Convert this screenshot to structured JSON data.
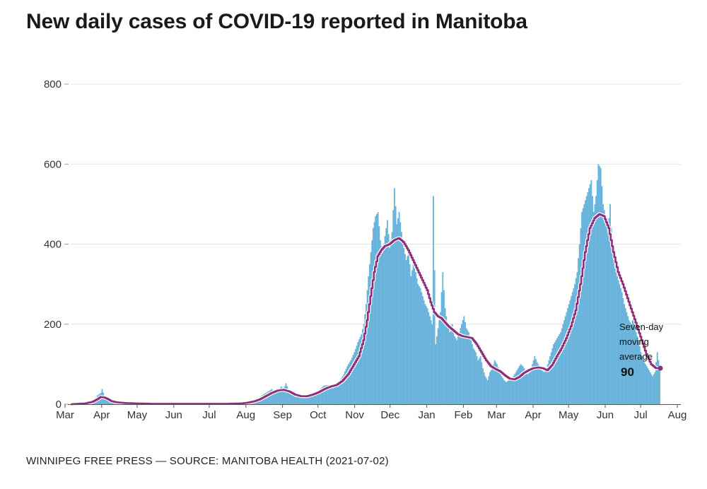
{
  "chart_data": {
    "type": "bar",
    "title": "New daily cases of COVID-19 reported in Manitoba",
    "source": "WINNIPEG FREE PRESS — SOURCE: MANITOBA HEALTH (2021-07-02)",
    "xlabel": "",
    "ylabel": "",
    "ylim": [
      0,
      800
    ],
    "y_ticks": [
      0,
      200,
      400,
      600,
      800
    ],
    "x_ticks": [
      "Mar",
      "Apr",
      "May",
      "Jun",
      "Jul",
      "Aug",
      "Sep",
      "Oct",
      "Nov",
      "Dec",
      "Jan",
      "Feb",
      "Mar",
      "Apr",
      "May",
      "Jun",
      "Jul",
      "Aug"
    ],
    "x_range_days": [
      0,
      517
    ],
    "grid": true,
    "series": [
      {
        "name": "New daily cases",
        "style": "bars",
        "color": "#6ab4dc",
        "points": [
          [
            0,
            0
          ],
          [
            10,
            1
          ],
          [
            15,
            3
          ],
          [
            18,
            8
          ],
          [
            20,
            12
          ],
          [
            22,
            22
          ],
          [
            25,
            28
          ],
          [
            26,
            38
          ],
          [
            28,
            20
          ],
          [
            30,
            14
          ],
          [
            33,
            8
          ],
          [
            36,
            4
          ],
          [
            40,
            3
          ],
          [
            45,
            2
          ],
          [
            50,
            2
          ],
          [
            60,
            1
          ],
          [
            70,
            1
          ],
          [
            80,
            0
          ],
          [
            90,
            1
          ],
          [
            100,
            0
          ],
          [
            110,
            1
          ],
          [
            120,
            1
          ],
          [
            130,
            1
          ],
          [
            140,
            2
          ],
          [
            148,
            3
          ],
          [
            150,
            6
          ],
          [
            155,
            12
          ],
          [
            158,
            10
          ],
          [
            160,
            18
          ],
          [
            163,
            25
          ],
          [
            166,
            30
          ],
          [
            170,
            38
          ],
          [
            172,
            28
          ],
          [
            175,
            35
          ],
          [
            178,
            44
          ],
          [
            180,
            38
          ],
          [
            182,
            52
          ],
          [
            185,
            30
          ],
          [
            188,
            22
          ],
          [
            190,
            18
          ],
          [
            193,
            20
          ],
          [
            196,
            18
          ],
          [
            200,
            22
          ],
          [
            204,
            24
          ],
          [
            208,
            30
          ],
          [
            211,
            38
          ],
          [
            214,
            46
          ],
          [
            218,
            48
          ],
          [
            222,
            40
          ],
          [
            225,
            52
          ],
          [
            228,
            60
          ],
          [
            231,
            75
          ],
          [
            234,
            95
          ],
          [
            237,
            110
          ],
          [
            240,
            130
          ],
          [
            243,
            155
          ],
          [
            246,
            175
          ],
          [
            248,
            200
          ],
          [
            250,
            250
          ],
          [
            252,
            320
          ],
          [
            254,
            380
          ],
          [
            256,
            440
          ],
          [
            258,
            470
          ],
          [
            260,
            480
          ],
          [
            262,
            410
          ],
          [
            264,
            380
          ],
          [
            266,
            420
          ],
          [
            268,
            460
          ],
          [
            270,
            390
          ],
          [
            272,
            430
          ],
          [
            274,
            540
          ],
          [
            276,
            450
          ],
          [
            278,
            480
          ],
          [
            280,
            430
          ],
          [
            282,
            390
          ],
          [
            284,
            360
          ],
          [
            286,
            380
          ],
          [
            288,
            320
          ],
          [
            290,
            350
          ],
          [
            292,
            330
          ],
          [
            294,
            300
          ],
          [
            296,
            290
          ],
          [
            298,
            270
          ],
          [
            300,
            250
          ],
          [
            302,
            240
          ],
          [
            304,
            220
          ],
          [
            306,
            200
          ],
          [
            307,
            520
          ],
          [
            309,
            150
          ],
          [
            311,
            190
          ],
          [
            313,
            230
          ],
          [
            315,
            330
          ],
          [
            317,
            240
          ],
          [
            319,
            200
          ],
          [
            321,
            180
          ],
          [
            323,
            200
          ],
          [
            325,
            170
          ],
          [
            327,
            160
          ],
          [
            329,
            180
          ],
          [
            331,
            200
          ],
          [
            333,
            220
          ],
          [
            335,
            190
          ],
          [
            337,
            180
          ],
          [
            339,
            160
          ],
          [
            341,
            140
          ],
          [
            343,
            130
          ],
          [
            345,
            110
          ],
          [
            347,
            120
          ],
          [
            349,
            90
          ],
          [
            351,
            70
          ],
          [
            353,
            60
          ],
          [
            355,
            80
          ],
          [
            357,
            90
          ],
          [
            359,
            110
          ],
          [
            361,
            100
          ],
          [
            363,
            85
          ],
          [
            365,
            70
          ],
          [
            367,
            60
          ],
          [
            369,
            55
          ],
          [
            371,
            60
          ],
          [
            373,
            65
          ],
          [
            375,
            70
          ],
          [
            377,
            80
          ],
          [
            379,
            90
          ],
          [
            381,
            100
          ],
          [
            383,
            95
          ],
          [
            385,
            85
          ],
          [
            387,
            75
          ],
          [
            389,
            80
          ],
          [
            391,
            100
          ],
          [
            393,
            120
          ],
          [
            395,
            105
          ],
          [
            397,
            95
          ],
          [
            399,
            85
          ],
          [
            401,
            80
          ],
          [
            403,
            90
          ],
          [
            405,
            110
          ],
          [
            407,
            130
          ],
          [
            409,
            150
          ],
          [
            411,
            160
          ],
          [
            413,
            170
          ],
          [
            415,
            180
          ],
          [
            417,
            200
          ],
          [
            419,
            220
          ],
          [
            421,
            240
          ],
          [
            423,
            260
          ],
          [
            425,
            280
          ],
          [
            427,
            300
          ],
          [
            429,
            330
          ],
          [
            431,
            400
          ],
          [
            433,
            480
          ],
          [
            435,
            500
          ],
          [
            437,
            520
          ],
          [
            439,
            540
          ],
          [
            441,
            560
          ],
          [
            443,
            480
          ],
          [
            445,
            520
          ],
          [
            447,
            600
          ],
          [
            449,
            590
          ],
          [
            451,
            500
          ],
          [
            453,
            470
          ],
          [
            455,
            430
          ],
          [
            457,
            500
          ],
          [
            459,
            380
          ],
          [
            461,
            340
          ],
          [
            463,
            320
          ],
          [
            465,
            300
          ],
          [
            467,
            280
          ],
          [
            469,
            250
          ],
          [
            471,
            230
          ],
          [
            473,
            210
          ],
          [
            475,
            200
          ],
          [
            477,
            220
          ],
          [
            479,
            180
          ],
          [
            481,
            160
          ],
          [
            483,
            130
          ],
          [
            485,
            110
          ],
          [
            487,
            100
          ],
          [
            489,
            90
          ],
          [
            491,
            80
          ],
          [
            493,
            70
          ],
          [
            495,
            80
          ],
          [
            497,
            130
          ],
          [
            499,
            90
          ]
        ]
      },
      {
        "name": "Seven-day moving average",
        "style": "step-line",
        "color": "#8e2e7a",
        "points": [
          [
            0,
            0
          ],
          [
            12,
            2
          ],
          [
            18,
            6
          ],
          [
            22,
            12
          ],
          [
            25,
            18
          ],
          [
            28,
            17
          ],
          [
            31,
            13
          ],
          [
            34,
            8
          ],
          [
            38,
            5
          ],
          [
            45,
            3
          ],
          [
            55,
            2
          ],
          [
            70,
            1
          ],
          [
            90,
            1
          ],
          [
            110,
            1
          ],
          [
            130,
            1
          ],
          [
            145,
            2
          ],
          [
            150,
            4
          ],
          [
            155,
            7
          ],
          [
            160,
            12
          ],
          [
            165,
            20
          ],
          [
            170,
            28
          ],
          [
            175,
            34
          ],
          [
            180,
            36
          ],
          [
            185,
            32
          ],
          [
            190,
            24
          ],
          [
            195,
            20
          ],
          [
            200,
            20
          ],
          [
            205,
            24
          ],
          [
            210,
            30
          ],
          [
            215,
            38
          ],
          [
            220,
            44
          ],
          [
            225,
            48
          ],
          [
            230,
            58
          ],
          [
            235,
            75
          ],
          [
            240,
            100
          ],
          [
            244,
            120
          ],
          [
            248,
            160
          ],
          [
            251,
            210
          ],
          [
            254,
            270
          ],
          [
            257,
            330
          ],
          [
            260,
            370
          ],
          [
            263,
            385
          ],
          [
            266,
            395
          ],
          [
            270,
            400
          ],
          [
            274,
            410
          ],
          [
            278,
            415
          ],
          [
            282,
            405
          ],
          [
            286,
            385
          ],
          [
            290,
            360
          ],
          [
            294,
            335
          ],
          [
            298,
            310
          ],
          [
            302,
            285
          ],
          [
            305,
            255
          ],
          [
            308,
            230
          ],
          [
            311,
            220
          ],
          [
            314,
            215
          ],
          [
            317,
            205
          ],
          [
            320,
            195
          ],
          [
            324,
            185
          ],
          [
            328,
            175
          ],
          [
            332,
            170
          ],
          [
            336,
            168
          ],
          [
            340,
            165
          ],
          [
            344,
            150
          ],
          [
            348,
            130
          ],
          [
            352,
            110
          ],
          [
            356,
            95
          ],
          [
            360,
            88
          ],
          [
            364,
            82
          ],
          [
            368,
            72
          ],
          [
            372,
            64
          ],
          [
            376,
            62
          ],
          [
            380,
            68
          ],
          [
            384,
            78
          ],
          [
            388,
            85
          ],
          [
            392,
            90
          ],
          [
            396,
            92
          ],
          [
            400,
            90
          ],
          [
            404,
            85
          ],
          [
            408,
            98
          ],
          [
            412,
            120
          ],
          [
            416,
            140
          ],
          [
            420,
            165
          ],
          [
            424,
            195
          ],
          [
            428,
            235
          ],
          [
            432,
            300
          ],
          [
            436,
            380
          ],
          [
            440,
            440
          ],
          [
            444,
            465
          ],
          [
            448,
            475
          ],
          [
            452,
            470
          ],
          [
            456,
            440
          ],
          [
            460,
            380
          ],
          [
            464,
            330
          ],
          [
            468,
            300
          ],
          [
            472,
            265
          ],
          [
            476,
            230
          ],
          [
            480,
            195
          ],
          [
            484,
            160
          ],
          [
            488,
            125
          ],
          [
            492,
            100
          ],
          [
            496,
            90
          ],
          [
            499,
            90
          ]
        ]
      }
    ],
    "annotation": {
      "label_lines": [
        "Seven-day",
        "moving",
        "average"
      ],
      "value": "90"
    }
  }
}
